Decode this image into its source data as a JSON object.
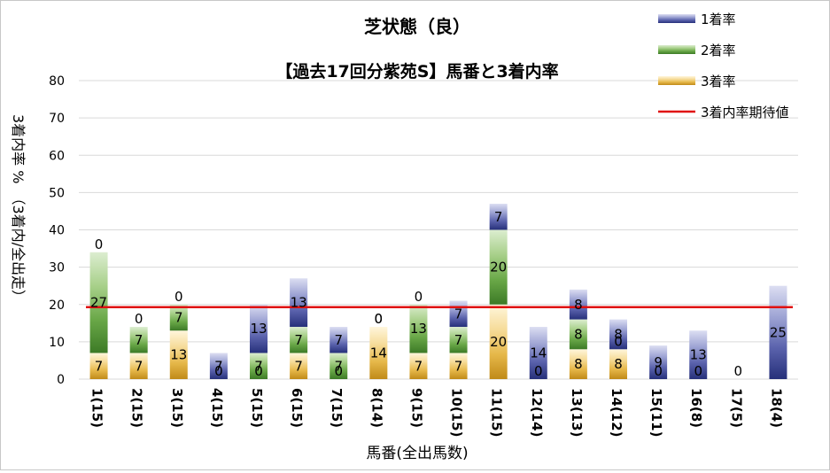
{
  "chart_data": {
    "type": "bar",
    "stacked": true,
    "title": "芝状態（良）",
    "subtitle": "【過去17回分紫苑S】馬番と3着内率",
    "xlabel": "馬番(全出馬数)",
    "ylabel": "3着内率 %　（3着内/全出走）",
    "ylim": [
      0,
      80
    ],
    "yticks": [
      "0",
      "10",
      "20",
      "30",
      "40",
      "50",
      "60",
      "70",
      "80"
    ],
    "grid": true,
    "legend_position": "top-right",
    "categories": [
      "1(15)",
      "2(15)",
      "3(15)",
      "4(15)",
      "5(15)",
      "6(15)",
      "7(15)",
      "8(14)",
      "9(15)",
      "10(15)",
      "11(15)",
      "12(14)",
      "13(13)",
      "14(12)",
      "15(11)",
      "16(8)",
      "17(5)",
      "18(4)"
    ],
    "series": [
      {
        "name": "3着率",
        "color": "#d8a030",
        "values": [
          7,
          7,
          13,
          0,
          0,
          7,
          0,
          14,
          7,
          7,
          20,
          0,
          8,
          8,
          0,
          0,
          0,
          0
        ],
        "labels": [
          "7",
          "7",
          "13",
          "",
          "0",
          "7",
          "0",
          "14",
          "7",
          "7",
          "20",
          "0",
          "8",
          "8",
          "0",
          "0",
          "",
          ""
        ]
      },
      {
        "name": "2着率",
        "color": "#5a9a3a",
        "values": [
          27,
          7,
          7,
          0,
          7,
          7,
          7,
          0,
          13,
          7,
          20,
          0,
          8,
          0,
          0,
          0,
          0,
          0
        ],
        "labels": [
          "27",
          "7",
          "7",
          "0",
          "7",
          "7",
          "7",
          "0",
          "13",
          "7",
          "20",
          "",
          "8",
          "0",
          "",
          "",
          "",
          ""
        ]
      },
      {
        "name": "1着率",
        "color": "#4a52a0",
        "values": [
          0,
          0,
          0,
          7,
          13,
          13,
          7,
          0,
          0,
          7,
          7,
          14,
          8,
          8,
          9,
          13,
          0,
          25
        ],
        "labels": [
          "0",
          "0",
          "0",
          "7",
          "13",
          "13",
          "7",
          "0",
          "0",
          "7",
          "7",
          "14",
          "8",
          "8",
          "9",
          "13",
          "0",
          "25"
        ]
      }
    ],
    "reference_line": {
      "name": "3着内率期待値",
      "value": 19.3,
      "color": "#e01010"
    }
  }
}
